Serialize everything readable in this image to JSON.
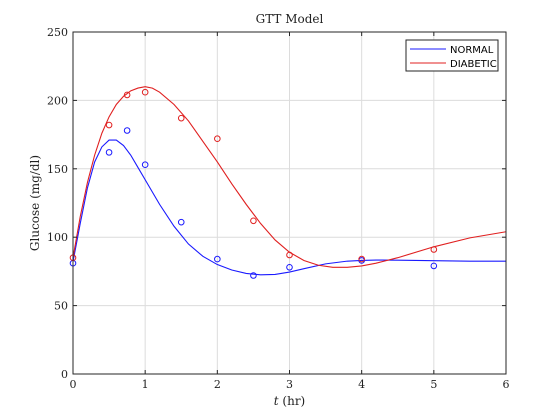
{
  "chart_data": {
    "type": "scatter",
    "title": "GTT Model",
    "xlabel_var": "t",
    "xlabel_unit": "(hr)",
    "ylabel": "Glucose (mg/dl)",
    "xlim": [
      0,
      6
    ],
    "ylim": [
      0,
      250
    ],
    "xticks": [
      0,
      1,
      2,
      3,
      4,
      5,
      6
    ],
    "yticks": [
      0,
      50,
      100,
      150,
      200,
      250
    ],
    "grid": true,
    "legend_position": "top-right",
    "series": [
      {
        "name": "NORMAL",
        "color": "#1a1aff",
        "points": {
          "x": [
            0,
            0.5,
            0.75,
            1,
            1.5,
            2,
            2.5,
            3,
            4,
            5
          ],
          "y": [
            81,
            162,
            178,
            153,
            111,
            84,
            72,
            78,
            83,
            79
          ]
        },
        "curve": {
          "x": [
            0,
            0.1,
            0.2,
            0.3,
            0.4,
            0.5,
            0.6,
            0.7,
            0.8,
            0.9,
            1.0,
            1.2,
            1.4,
            1.6,
            1.8,
            2.0,
            2.2,
            2.4,
            2.6,
            2.8,
            3.0,
            3.2,
            3.5,
            3.8,
            4.0,
            4.2,
            4.5,
            5.0,
            5.5,
            6.0
          ],
          "y": [
            82,
            110,
            136,
            155,
            166,
            171,
            171,
            167,
            160,
            151,
            142,
            124,
            108,
            95,
            86,
            80,
            76,
            73.5,
            72.5,
            72.8,
            74.5,
            77,
            80.5,
            82.5,
            83,
            83.3,
            83.2,
            82.8,
            82.5,
            82.5
          ]
        }
      },
      {
        "name": "DIABETIC",
        "color": "#e02020",
        "points": {
          "x": [
            0,
            0.5,
            0.75,
            1,
            1.5,
            2,
            2.5,
            3,
            4,
            5
          ],
          "y": [
            85,
            182,
            204,
            206,
            187,
            172,
            112,
            87,
            84,
            91
          ]
        },
        "curve": {
          "x": [
            0,
            0.1,
            0.2,
            0.3,
            0.4,
            0.5,
            0.6,
            0.7,
            0.8,
            0.9,
            1.0,
            1.1,
            1.2,
            1.4,
            1.6,
            1.8,
            2.0,
            2.2,
            2.4,
            2.6,
            2.8,
            3.0,
            3.2,
            3.4,
            3.6,
            3.8,
            4.0,
            4.2,
            4.5,
            5.0,
            5.5,
            6.0
          ],
          "y": [
            85,
            115,
            140,
            160,
            176,
            188,
            197,
            203,
            207,
            209,
            210,
            209,
            206,
            197,
            185,
            170,
            155,
            139,
            124,
            110,
            98,
            89,
            83,
            79.5,
            78,
            78,
            79,
            81,
            85,
            93,
            99.5,
            104
          ]
        }
      }
    ]
  }
}
